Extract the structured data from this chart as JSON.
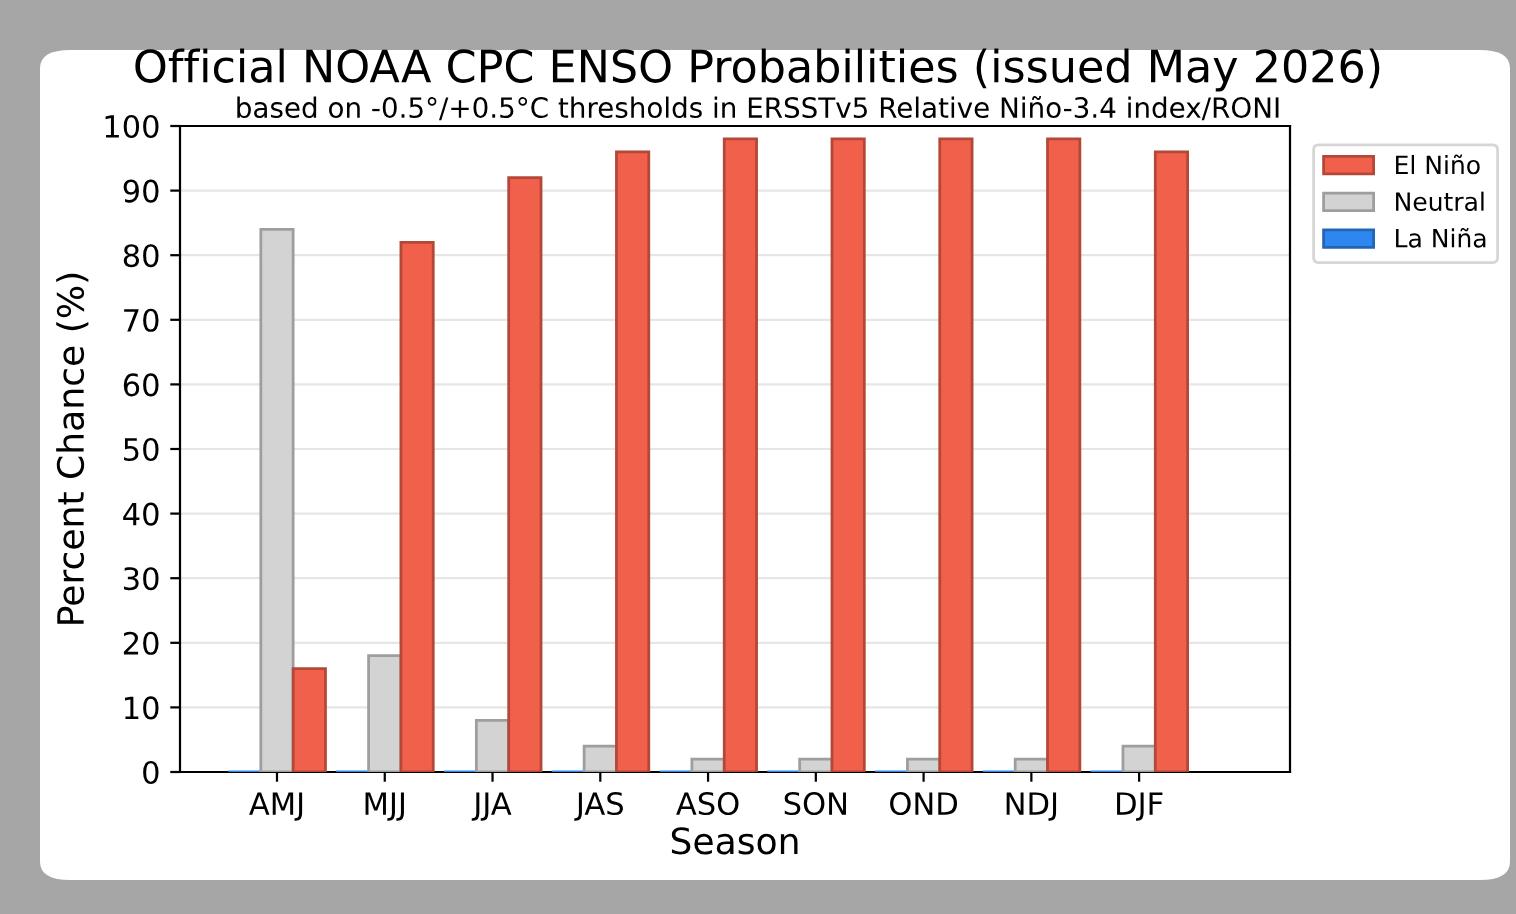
{
  "chart_data": {
    "type": "bar",
    "title": "Official NOAA CPC ENSO Probabilities (issued May 2026)",
    "subtitle": "based on -0.5°/+0.5°C thresholds in ERSSTv5 Relative Niño-3.4 index/RONI",
    "xlabel": "Season",
    "ylabel": "Percent Chance (%)",
    "categories": [
      "AMJ",
      "MJJ",
      "JJA",
      "JAS",
      "ASO",
      "SON",
      "OND",
      "NDJ",
      "DJF"
    ],
    "series": [
      {
        "name": "La Niña",
        "color": "#2e86f0",
        "values": [
          0,
          0,
          0,
          0,
          0,
          0,
          0,
          0,
          0
        ]
      },
      {
        "name": "Neutral",
        "color": "#d3d3d3",
        "values": [
          84,
          18,
          8,
          4,
          2,
          2,
          2,
          2,
          4
        ]
      },
      {
        "name": "El Niño",
        "color": "#f0604a",
        "values": [
          16,
          82,
          92,
          96,
          98,
          98,
          98,
          98,
          96
        ]
      }
    ],
    "ylim": [
      0,
      100
    ],
    "yticks": [
      0,
      10,
      20,
      30,
      40,
      50,
      60,
      70,
      80,
      90,
      100
    ],
    "grid": "y",
    "legend": "top right"
  }
}
